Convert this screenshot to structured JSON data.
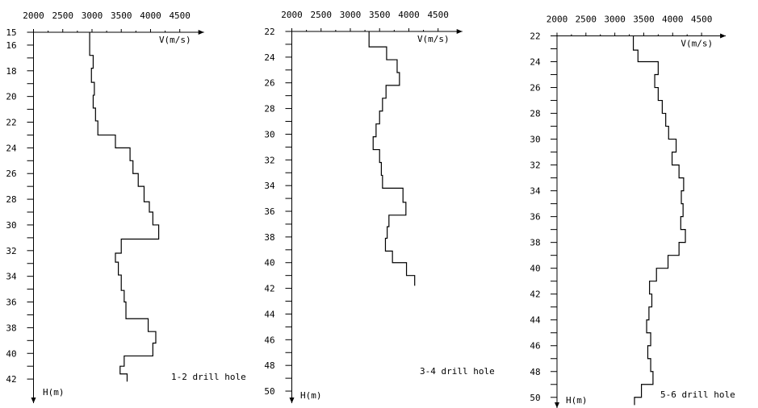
{
  "colors": {
    "ink": "#000000",
    "background": "#ffffff"
  },
  "chart_data": [
    {
      "type": "line",
      "title": "1-2 drill hole",
      "xlabel": "V(m/s)",
      "ylabel": "H(m)",
      "x_ticks": [
        2000,
        2500,
        3000,
        3500,
        4000,
        4500
      ],
      "y_ticks": [
        15,
        16,
        18,
        20,
        22,
        24,
        26,
        28,
        30,
        32,
        34,
        36,
        38,
        40,
        42
      ],
      "xlim": [
        2000,
        4500
      ],
      "ylim": [
        15,
        42.2
      ],
      "step": "profile",
      "layers": [
        {
          "from": 15,
          "to": 16.8,
          "v": 2960
        },
        {
          "from": 16.8,
          "to": 17.8,
          "v": 3020
        },
        {
          "from": 17.8,
          "to": 18.9,
          "v": 2990
        },
        {
          "from": 18.9,
          "to": 19.9,
          "v": 3040
        },
        {
          "from": 19.9,
          "to": 20.9,
          "v": 3020
        },
        {
          "from": 20.9,
          "to": 21.9,
          "v": 3060
        },
        {
          "from": 21.9,
          "to": 23.0,
          "v": 3100
        },
        {
          "from": 23.0,
          "to": 24.0,
          "v": 3400
        },
        {
          "from": 24.0,
          "to": 25.0,
          "v": 3650
        },
        {
          "from": 25.0,
          "to": 26.0,
          "v": 3700
        },
        {
          "from": 26.0,
          "to": 27.0,
          "v": 3790
        },
        {
          "from": 27.0,
          "to": 28.2,
          "v": 3890
        },
        {
          "from": 28.2,
          "to": 29.0,
          "v": 3980
        },
        {
          "from": 29.0,
          "to": 30.0,
          "v": 4040
        },
        {
          "from": 30.0,
          "to": 31.1,
          "v": 4140
        },
        {
          "from": 31.1,
          "to": 32.2,
          "v": 3500
        },
        {
          "from": 32.2,
          "to": 32.9,
          "v": 3400
        },
        {
          "from": 32.9,
          "to": 33.9,
          "v": 3450
        },
        {
          "from": 33.9,
          "to": 35.1,
          "v": 3500
        },
        {
          "from": 35.1,
          "to": 36.0,
          "v": 3550
        },
        {
          "from": 36.0,
          "to": 37.3,
          "v": 3580
        },
        {
          "from": 37.3,
          "to": 38.3,
          "v": 3960
        },
        {
          "from": 38.3,
          "to": 39.2,
          "v": 4090
        },
        {
          "from": 39.2,
          "to": 40.2,
          "v": 4040
        },
        {
          "from": 40.2,
          "to": 41.0,
          "v": 3550
        },
        {
          "from": 41.0,
          "to": 41.6,
          "v": 3480
        },
        {
          "from": 41.6,
          "to": 42.2,
          "v": 3600
        }
      ]
    },
    {
      "type": "line",
      "title": "3-4 drill hole",
      "xlabel": "V(m/s)",
      "ylabel": "H(m)",
      "x_ticks": [
        2000,
        2500,
        3000,
        3500,
        4000,
        4500
      ],
      "y_ticks": [
        22,
        24,
        26,
        28,
        30,
        32,
        34,
        36,
        38,
        40,
        42,
        44,
        46,
        48,
        50
      ],
      "xlim": [
        2000,
        4500
      ],
      "ylim": [
        22,
        50.2
      ],
      "step": "profile",
      "layers": [
        {
          "from": 22,
          "to": 23.2,
          "v": 3320
        },
        {
          "from": 23.2,
          "to": 24.2,
          "v": 3620
        },
        {
          "from": 24.2,
          "to": 25.2,
          "v": 3800
        },
        {
          "from": 25.2,
          "to": 26.2,
          "v": 3840
        },
        {
          "from": 26.2,
          "to": 27.2,
          "v": 3610
        },
        {
          "from": 27.2,
          "to": 28.2,
          "v": 3550
        },
        {
          "from": 28.2,
          "to": 29.2,
          "v": 3500
        },
        {
          "from": 29.2,
          "to": 30.2,
          "v": 3440
        },
        {
          "from": 30.2,
          "to": 31.2,
          "v": 3390
        },
        {
          "from": 31.2,
          "to": 32.2,
          "v": 3500
        },
        {
          "from": 32.2,
          "to": 33.2,
          "v": 3530
        },
        {
          "from": 33.2,
          "to": 34.2,
          "v": 3550
        },
        {
          "from": 34.2,
          "to": 35.3,
          "v": 3900
        },
        {
          "from": 35.3,
          "to": 36.3,
          "v": 3950
        },
        {
          "from": 36.3,
          "to": 37.2,
          "v": 3660
        },
        {
          "from": 37.2,
          "to": 38.1,
          "v": 3630
        },
        {
          "from": 38.1,
          "to": 39.1,
          "v": 3600
        },
        {
          "from": 39.1,
          "to": 40.0,
          "v": 3720
        },
        {
          "from": 40.0,
          "to": 41.0,
          "v": 3960
        },
        {
          "from": 41.0,
          "to": 41.8,
          "v": 4100
        }
      ]
    },
    {
      "type": "line",
      "title": "5-6 drill hole",
      "xlabel": "V(m/s)",
      "ylabel": "H(m)",
      "x_ticks": [
        2000,
        2500,
        3000,
        3500,
        4000,
        4500
      ],
      "y_ticks": [
        22,
        24,
        26,
        28,
        30,
        32,
        34,
        36,
        38,
        40,
        42,
        44,
        46,
        48,
        50
      ],
      "xlim": [
        2000,
        4500
      ],
      "ylim": [
        22,
        50.6
      ],
      "step": "profile",
      "layers": [
        {
          "from": 22,
          "to": 23.1,
          "v": 3320
        },
        {
          "from": 23.1,
          "to": 24.0,
          "v": 3400
        },
        {
          "from": 24.0,
          "to": 25.0,
          "v": 3750
        },
        {
          "from": 25.0,
          "to": 26.0,
          "v": 3690
        },
        {
          "from": 26.0,
          "to": 27.0,
          "v": 3750
        },
        {
          "from": 27.0,
          "to": 28.0,
          "v": 3820
        },
        {
          "from": 28.0,
          "to": 29.0,
          "v": 3880
        },
        {
          "from": 29.0,
          "to": 30.0,
          "v": 3930
        },
        {
          "from": 30.0,
          "to": 31.0,
          "v": 4060
        },
        {
          "from": 31.0,
          "to": 32.0,
          "v": 3990
        },
        {
          "from": 32.0,
          "to": 33.0,
          "v": 4110
        },
        {
          "from": 33.0,
          "to": 34.0,
          "v": 4190
        },
        {
          "from": 34.0,
          "to": 35.0,
          "v": 4150
        },
        {
          "from": 35.0,
          "to": 36.0,
          "v": 4180
        },
        {
          "from": 36.0,
          "to": 37.0,
          "v": 4140
        },
        {
          "from": 37.0,
          "to": 38.0,
          "v": 4220
        },
        {
          "from": 38.0,
          "to": 39.0,
          "v": 4110
        },
        {
          "from": 39.0,
          "to": 40.0,
          "v": 3920
        },
        {
          "from": 40.0,
          "to": 41.0,
          "v": 3720
        },
        {
          "from": 41.0,
          "to": 42.0,
          "v": 3600
        },
        {
          "from": 42.0,
          "to": 43.0,
          "v": 3640
        },
        {
          "from": 43.0,
          "to": 44.0,
          "v": 3590
        },
        {
          "from": 44.0,
          "to": 45.0,
          "v": 3550
        },
        {
          "from": 45.0,
          "to": 46.0,
          "v": 3620
        },
        {
          "from": 46.0,
          "to": 47.0,
          "v": 3570
        },
        {
          "from": 47.0,
          "to": 48.0,
          "v": 3620
        },
        {
          "from": 48.0,
          "to": 49.0,
          "v": 3660
        },
        {
          "from": 49.0,
          "to": 50.0,
          "v": 3460
        },
        {
          "from": 50.0,
          "to": 50.6,
          "v": 3340
        }
      ]
    }
  ]
}
